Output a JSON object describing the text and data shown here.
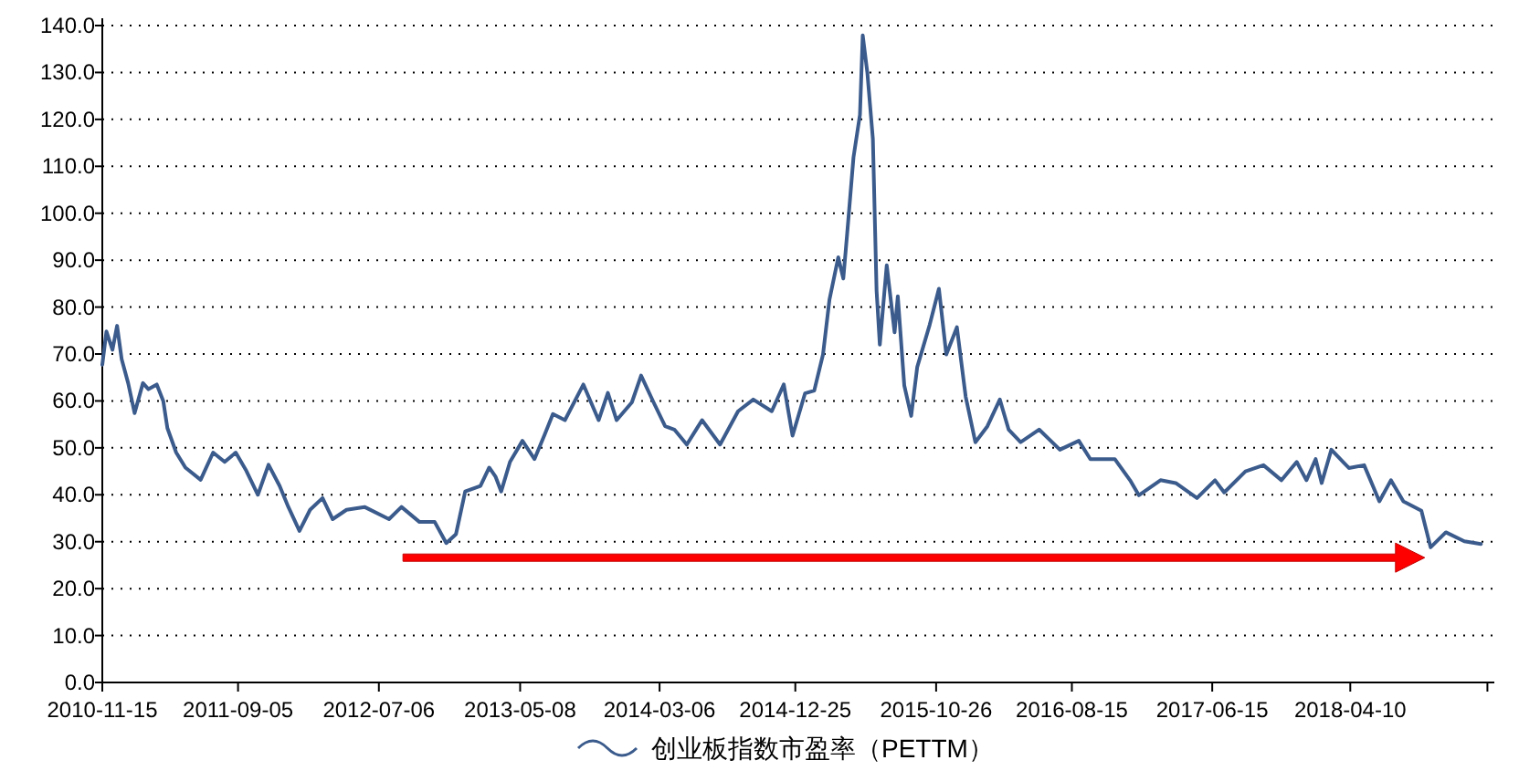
{
  "chart_data": {
    "type": "line",
    "legend": "bottom",
    "grid": "y",
    "line_style": "solid",
    "marker": "none",
    "xlim": [
      "2010-11-15",
      "2019-02-16"
    ],
    "xticks": [
      "2010-11-15",
      "2011-09-05",
      "2012-07-06",
      "2013-05-08",
      "2014-03-06",
      "2014-12-25",
      "2015-10-26",
      "2016-08-15",
      "2017-06-15",
      "2018-04-10",
      {
        "value": "2019-02-01",
        "label": null
      }
    ],
    "ylim": [
      0,
      140
    ],
    "yticks": [
      {
        "value": 0,
        "label": "0.0"
      },
      {
        "value": 10,
        "label": "10.0"
      },
      {
        "value": 20,
        "label": "20.0"
      },
      {
        "value": 30,
        "label": "30.0"
      },
      {
        "value": 40,
        "label": "40.0"
      },
      {
        "value": 50,
        "label": "50.0"
      },
      {
        "value": 60,
        "label": "60.0"
      },
      {
        "value": 70,
        "label": "70.0"
      },
      {
        "value": 80,
        "label": "80.0"
      },
      {
        "value": 90,
        "label": "90.0"
      },
      {
        "value": 100,
        "label": "100.0"
      },
      {
        "value": 110,
        "label": "110.0"
      },
      {
        "value": 120,
        "label": "120.0"
      },
      {
        "value": 130,
        "label": "130.0"
      },
      {
        "value": 140,
        "label": "140.0"
      }
    ],
    "series": [
      {
        "name": "创业板指数市盈率（PETTM）",
        "color": "#3b5b8c",
        "x": [
          "2010-11-15",
          "2010-11-24",
          "2010-12-07",
          "2010-12-17",
          "2010-12-27",
          "2011-01-10",
          "2011-01-24",
          "2011-02-11",
          "2011-02-23",
          "2011-03-13",
          "2011-03-27",
          "2011-04-05",
          "2011-04-24",
          "2011-05-14",
          "2011-06-16",
          "2011-07-13",
          "2011-08-07",
          "2011-08-31",
          "2011-09-23",
          "2011-10-18",
          "2011-11-10",
          "2011-12-04",
          "2011-12-23",
          "2012-01-16",
          "2012-02-08",
          "2012-03-06",
          "2012-03-28",
          "2012-04-27",
          "2012-06-05",
          "2012-07-28",
          "2012-08-24",
          "2012-10-02",
          "2012-11-04",
          "2012-11-29",
          "2012-12-20",
          "2013-01-09",
          "2013-02-11",
          "2013-03-02",
          "2013-03-16",
          "2013-03-28",
          "2013-04-16",
          "2013-05-13",
          "2013-06-08",
          "2013-06-30",
          "2013-07-18",
          "2013-08-13",
          "2013-09-22",
          "2013-10-25",
          "2013-11-14",
          "2013-12-03",
          "2014-01-05",
          "2014-01-25",
          "2014-02-21",
          "2014-03-18",
          "2014-04-07",
          "2014-05-04",
          "2014-06-06",
          "2014-07-15",
          "2014-08-23",
          "2014-09-25",
          "2014-11-04",
          "2014-11-30",
          "2014-12-19",
          "2015-01-15",
          "2015-02-04",
          "2015-02-23",
          "2015-03-09",
          "2015-03-28",
          "2015-04-08",
          "2015-04-17",
          "2015-04-30",
          "2015-05-14",
          "2015-05-20",
          "2015-05-30",
          "2015-06-11",
          "2015-06-19",
          "2015-06-26",
          "2015-07-11",
          "2015-07-28",
          "2015-08-04",
          "2015-08-18",
          "2015-09-02",
          "2015-09-15",
          "2015-10-12",
          "2015-11-01",
          "2015-11-17",
          "2015-12-10",
          "2015-12-29",
          "2016-01-19",
          "2016-02-14",
          "2016-03-12",
          "2016-03-31",
          "2016-04-26",
          "2016-06-05",
          "2016-07-20",
          "2016-08-30",
          "2016-09-24",
          "2016-11-16",
          "2016-12-19",
          "2017-01-07",
          "2017-02-23",
          "2017-03-28",
          "2017-05-13",
          "2017-06-21",
          "2017-07-11",
          "2017-08-26",
          "2017-10-04",
          "2017-11-12",
          "2017-12-15",
          "2018-01-05",
          "2018-01-25",
          "2018-02-07",
          "2018-02-28",
          "2018-04-07",
          "2018-05-10",
          "2018-06-12",
          "2018-07-07",
          "2018-08-03",
          "2018-09-11",
          "2018-10-01",
          "2018-11-03",
          "2018-12-13",
          "2019-01-18"
        ],
        "values": [
          67.7,
          74.8,
          70.9,
          76.0,
          68.9,
          63.8,
          57.4,
          63.8,
          62.5,
          63.5,
          60.0,
          54.2,
          49.0,
          45.8,
          43.2,
          49.0,
          47.0,
          49.0,
          45.1,
          40.0,
          46.4,
          41.9,
          37.4,
          32.3,
          36.8,
          39.3,
          34.8,
          36.8,
          37.4,
          34.8,
          37.4,
          34.2,
          34.2,
          29.7,
          31.6,
          40.7,
          41.9,
          45.8,
          43.8,
          40.7,
          47.0,
          51.5,
          47.6,
          52.8,
          57.2,
          55.9,
          63.5,
          55.9,
          61.7,
          55.9,
          59.7,
          65.4,
          59.7,
          54.6,
          53.9,
          50.7,
          55.9,
          50.7,
          57.8,
          60.3,
          57.8,
          63.5,
          52.6,
          61.6,
          62.2,
          69.9,
          81.6,
          90.6,
          86.1,
          96.5,
          111.9,
          121.0,
          137.9,
          130.0,
          115.8,
          83.5,
          72.0,
          88.9,
          74.6,
          82.3,
          63.3,
          56.8,
          67.2,
          76.2,
          83.9,
          69.9,
          75.7,
          60.9,
          51.2,
          54.6,
          60.3,
          53.9,
          51.2,
          53.9,
          49.6,
          51.5,
          47.6,
          47.6,
          43.1,
          39.9,
          43.1,
          42.5,
          39.3,
          43.1,
          40.5,
          45.0,
          46.3,
          43.1,
          47.0,
          43.1,
          47.6,
          42.5,
          49.6,
          45.7,
          46.3,
          38.6,
          43.1,
          38.6,
          36.6,
          28.8,
          32.0,
          30.1,
          29.5
        ]
      }
    ]
  }
}
